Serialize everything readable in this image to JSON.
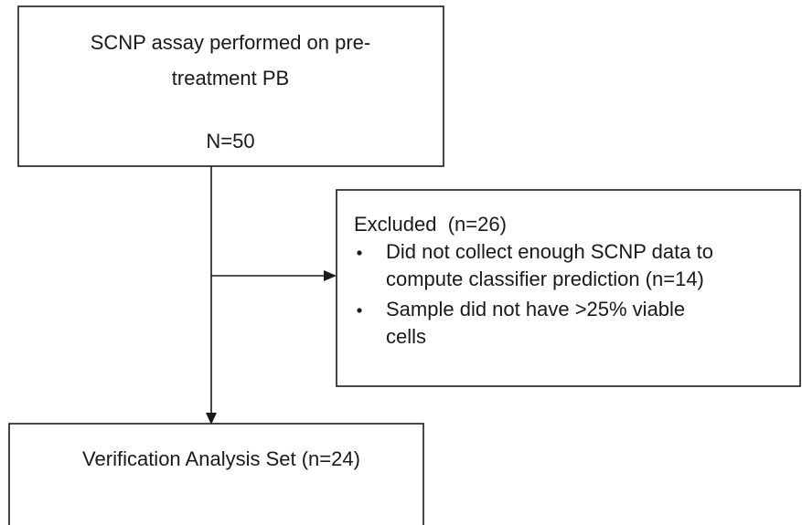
{
  "nodes": [
    {
      "lines": [
        "SCNP assay performed on pre-",
        "treatment PB",
        "N=50"
      ]
    },
    {
      "title": "Excluded  (n=26)",
      "bullets": [
        [
          "Did not collect enough SCNP data to",
          "compute classifier prediction (n=14)"
        ],
        [
          "Sample did not have >25% viable",
          "cells"
        ]
      ]
    },
    {
      "lines": [
        "Verification Analysis Set (n=24)"
      ]
    }
  ]
}
